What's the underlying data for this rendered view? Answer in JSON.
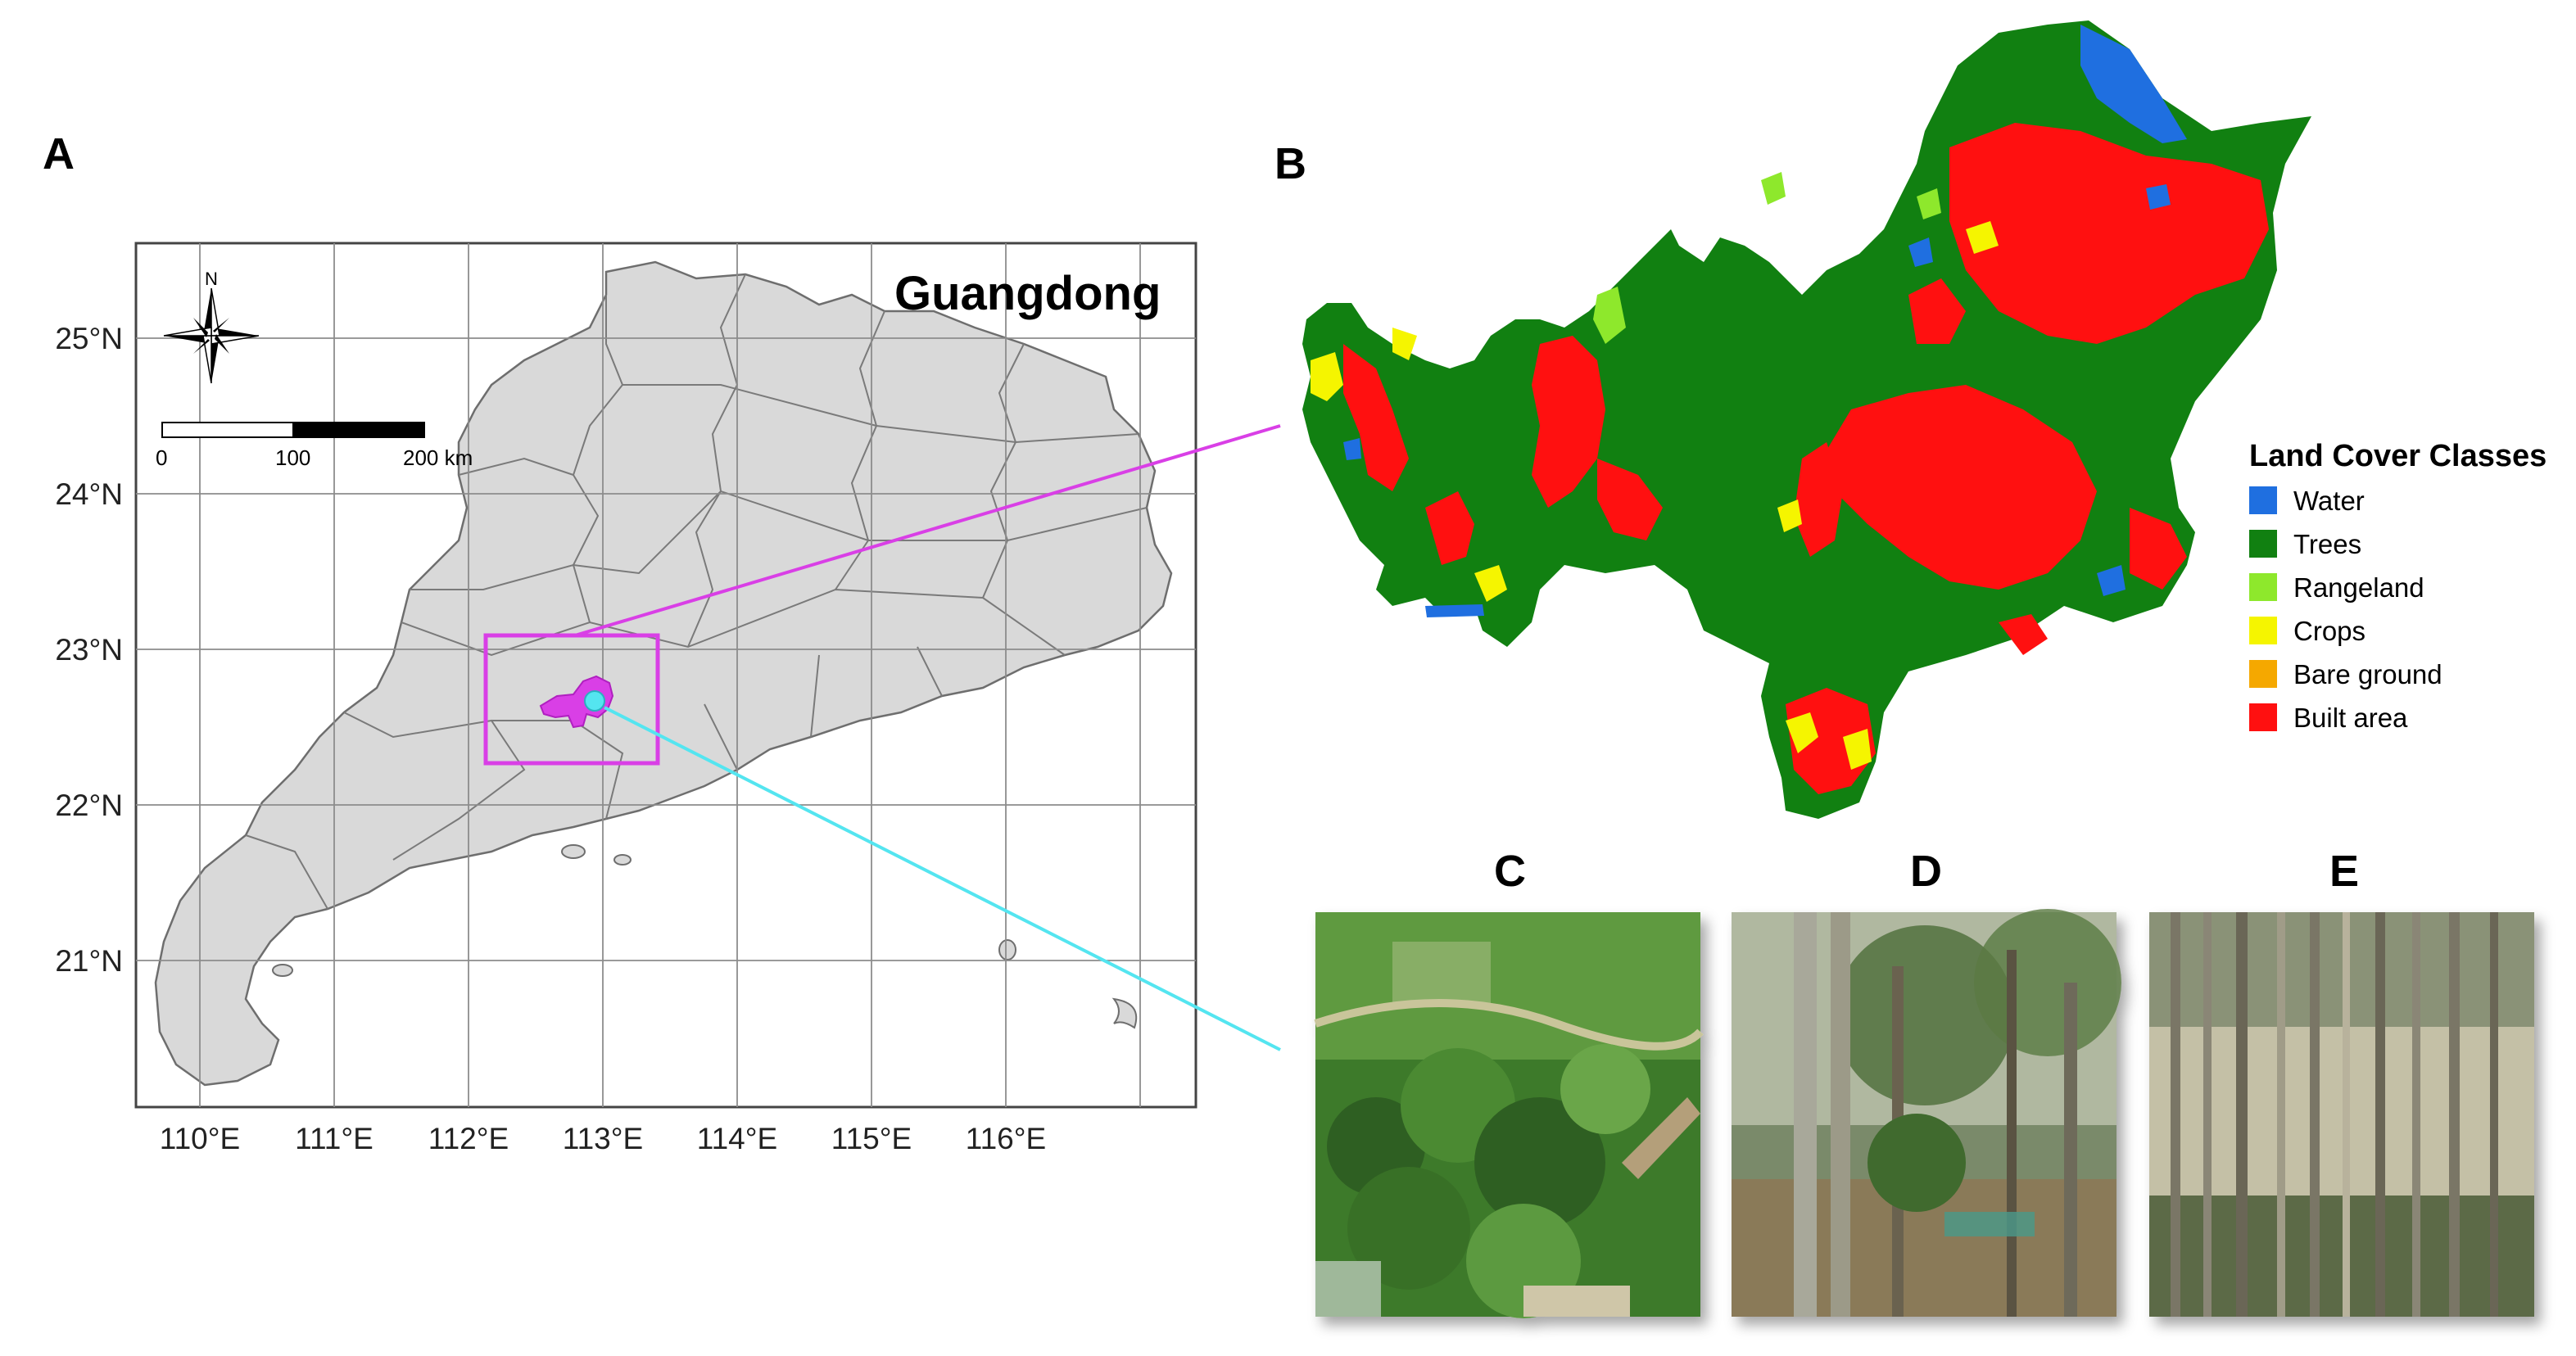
{
  "panels": {
    "a": "A",
    "b": "B",
    "c": "C",
    "d": "D",
    "e": "E"
  },
  "map_a": {
    "title": "Guangdong",
    "north_label": "N",
    "scale_bar": {
      "labels": [
        "0",
        "100",
        "200 km"
      ]
    },
    "lat_ticks": [
      "25°N",
      "24°N",
      "23°N",
      "22°N",
      "21°N"
    ],
    "lon_ticks": [
      "110°E",
      "111°E",
      "112°E",
      "113°E",
      "114°E",
      "115°E",
      "116°E"
    ],
    "colors": {
      "land": "#d9d9d9",
      "boundary": "#6e6e6e",
      "graticule": "#8c8c8c",
      "study_area": "#d93fe6",
      "site_marker": "#54e5f0"
    }
  },
  "legend": {
    "title": "Land Cover Classes",
    "items": [
      {
        "label": "Water",
        "color": "#1f6fe0"
      },
      {
        "label": "Trees",
        "color": "#118011"
      },
      {
        "label": "Rangeland",
        "color": "#8ee82c"
      },
      {
        "label": "Crops",
        "color": "#f5f500"
      },
      {
        "label": "Bare ground",
        "color": "#f5a800"
      },
      {
        "label": "Built area",
        "color": "#ff1010"
      }
    ]
  },
  "photos": [
    {
      "id": "c",
      "subject": "aerial-forest",
      "colors": [
        "#3d7a2c",
        "#6aa648",
        "#2f5f22"
      ]
    },
    {
      "id": "d",
      "subject": "forest-understory",
      "colors": [
        "#7a8a6a",
        "#4d6b3a",
        "#b0b8a0"
      ]
    },
    {
      "id": "e",
      "subject": "eucalyptus-plantation",
      "colors": [
        "#8a9277",
        "#5c6b47",
        "#c4c0a6"
      ]
    }
  ]
}
